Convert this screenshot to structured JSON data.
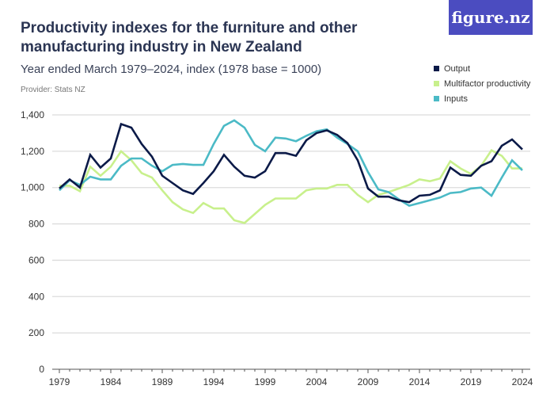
{
  "title": "Productivity indexes for the furniture and other manufacturing industry in New Zealand",
  "subtitle": "Year ended March 1979–2024, index (1978 base = 1000)",
  "provider": "Provider: Stats NZ",
  "logo": "figure.nz",
  "chart_data": {
    "type": "line",
    "title": "Productivity indexes for the furniture and other manufacturing industry in New Zealand",
    "subtitle": "Year ended March 1979–2024, index (1978 base = 1000)",
    "xlim": [
      1979,
      2024
    ],
    "ylim": [
      0,
      1400
    ],
    "x_ticks": [
      1979,
      1984,
      1989,
      1994,
      1999,
      2004,
      2009,
      2014,
      2019,
      2024
    ],
    "y_ticks": [
      0,
      200,
      400,
      600,
      800,
      1000,
      1200,
      1400
    ],
    "y_tick_labels": [
      "0",
      "200",
      "400",
      "600",
      "800",
      "1,000",
      "1,200",
      "1,400"
    ],
    "grid": "horizontal",
    "legend_position": "top-right",
    "x": [
      1979,
      1980,
      1981,
      1982,
      1983,
      1984,
      1985,
      1986,
      1987,
      1988,
      1989,
      1990,
      1991,
      1992,
      1993,
      1994,
      1995,
      1996,
      1997,
      1998,
      1999,
      2000,
      2001,
      2002,
      2003,
      2004,
      2005,
      2006,
      2007,
      2008,
      2009,
      2010,
      2011,
      2012,
      2013,
      2014,
      2015,
      2016,
      2017,
      2018,
      2019,
      2020,
      2021,
      2022,
      2023,
      2024
    ],
    "series": [
      {
        "name": "Output",
        "color": "#0b1a48",
        "values": [
          995,
          1045,
          1000,
          1180,
          1110,
          1160,
          1350,
          1330,
          1240,
          1170,
          1065,
          1025,
          985,
          965,
          1025,
          1090,
          1180,
          1115,
          1065,
          1055,
          1090,
          1190,
          1190,
          1175,
          1260,
          1300,
          1315,
          1290,
          1245,
          1150,
          995,
          950,
          950,
          930,
          920,
          955,
          960,
          985,
          1110,
          1070,
          1065,
          1120,
          1145,
          1230,
          1265,
          1210
        ]
      },
      {
        "name": "Multifactor productivity",
        "color": "#c8f08c",
        "values": [
          1010,
          1010,
          980,
          1115,
          1065,
          1115,
          1200,
          1150,
          1080,
          1055,
          985,
          920,
          880,
          860,
          915,
          885,
          885,
          820,
          805,
          855,
          905,
          940,
          940,
          940,
          985,
          995,
          995,
          1015,
          1015,
          960,
          920,
          960,
          975,
          995,
          1015,
          1045,
          1035,
          1050,
          1145,
          1105,
          1075,
          1120,
          1205,
          1175,
          1105,
          1105
        ]
      },
      {
        "name": "Inputs",
        "color": "#4bbac6",
        "values": [
          985,
          1040,
          1015,
          1060,
          1045,
          1045,
          1120,
          1160,
          1160,
          1120,
          1090,
          1125,
          1130,
          1125,
          1125,
          1240,
          1340,
          1370,
          1330,
          1235,
          1200,
          1275,
          1270,
          1255,
          1285,
          1310,
          1320,
          1275,
          1240,
          1200,
          1085,
          990,
          975,
          935,
          900,
          915,
          930,
          945,
          970,
          975,
          995,
          1000,
          955,
          1055,
          1150,
          1095
        ]
      }
    ]
  }
}
